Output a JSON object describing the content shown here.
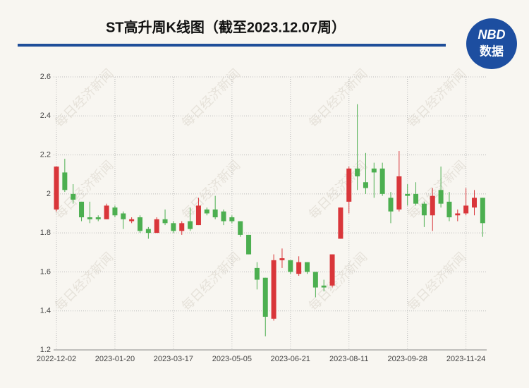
{
  "chart_data": {
    "type": "candlestick",
    "title": "ST高升周K线图（截至2023.12.07周）",
    "logo": {
      "top": "NBD",
      "bottom": "数据"
    },
    "watermark": "每日经济新闻",
    "categories": [
      "2022-12-02",
      null,
      null,
      null,
      null,
      null,
      null,
      "2023-01-20",
      null,
      null,
      null,
      null,
      null,
      null,
      "2023-03-17",
      null,
      null,
      null,
      null,
      null,
      null,
      "2023-05-05",
      null,
      null,
      null,
      null,
      null,
      null,
      "2023-06-21",
      null,
      null,
      null,
      null,
      null,
      null,
      "2023-08-11",
      null,
      null,
      null,
      null,
      null,
      null,
      "2023-09-28",
      null,
      null,
      null,
      null,
      null,
      null,
      "2023-11-24",
      null,
      null
    ],
    "open": [
      1.92,
      2.11,
      2.0,
      1.96,
      1.88,
      1.88,
      1.87,
      1.93,
      1.9,
      1.86,
      1.88,
      1.82,
      1.8,
      1.87,
      1.85,
      1.81,
      1.86,
      1.84,
      1.92,
      1.92,
      1.91,
      1.88,
      1.86,
      1.79,
      1.62,
      1.57,
      1.36,
      1.66,
      1.66,
      1.59,
      1.65,
      1.6,
      1.53,
      1.53,
      1.77,
      1.96,
      2.13,
      2.06,
      2.13,
      2.13,
      1.98,
      1.92,
      2.0,
      2.0,
      1.95,
      1.89,
      2.02,
      1.96,
      1.89,
      1.9,
      1.93,
      1.98
    ],
    "high": [
      2.14,
      2.18,
      2.05,
      1.96,
      1.96,
      1.89,
      1.95,
      1.94,
      1.91,
      1.88,
      1.89,
      1.83,
      1.88,
      1.92,
      1.86,
      1.86,
      1.93,
      1.98,
      1.93,
      1.99,
      1.92,
      1.89,
      1.86,
      1.79,
      1.65,
      1.57,
      1.69,
      1.72,
      1.66,
      1.68,
      1.65,
      1.6,
      1.56,
      1.69,
      1.93,
      2.14,
      2.46,
      2.21,
      2.16,
      2.16,
      2.01,
      2.22,
      2.05,
      2.06,
      1.96,
      2.03,
      2.14,
      2.01,
      1.92,
      2.03,
      2.02,
      1.98
    ],
    "low": [
      1.91,
      2.01,
      1.95,
      1.86,
      1.85,
      1.86,
      1.87,
      1.88,
      1.82,
      1.85,
      1.8,
      1.77,
      1.8,
      1.84,
      1.8,
      1.79,
      1.81,
      1.84,
      1.89,
      1.87,
      1.84,
      1.85,
      1.78,
      1.69,
      1.51,
      1.27,
      1.35,
      1.62,
      1.59,
      1.58,
      1.59,
      1.47,
      1.5,
      1.52,
      1.77,
      1.9,
      2.02,
      2.0,
      1.98,
      1.99,
      1.85,
      1.91,
      1.94,
      1.94,
      1.83,
      1.81,
      1.93,
      1.86,
      1.86,
      1.89,
      1.89,
      1.78
    ],
    "close": [
      2.14,
      2.02,
      1.97,
      1.88,
      1.87,
      1.87,
      1.94,
      1.89,
      1.87,
      1.87,
      1.81,
      1.8,
      1.87,
      1.85,
      1.81,
      1.85,
      1.82,
      1.94,
      1.9,
      1.88,
      1.86,
      1.86,
      1.79,
      1.69,
      1.56,
      1.37,
      1.66,
      1.67,
      1.6,
      1.65,
      1.6,
      1.52,
      1.52,
      1.69,
      1.93,
      2.13,
      2.09,
      2.03,
      2.11,
      2.0,
      1.91,
      2.09,
      1.99,
      1.95,
      1.89,
      1.99,
      1.95,
      1.88,
      1.9,
      1.94,
      1.98,
      1.85
    ],
    "up_color": "#d9363a",
    "down_color": "#4caf50",
    "ylim": [
      1.2,
      2.6
    ],
    "yticks": [
      1.2,
      1.4,
      1.6,
      1.8,
      2,
      2.2,
      2.4,
      2.6
    ],
    "grid": true
  }
}
